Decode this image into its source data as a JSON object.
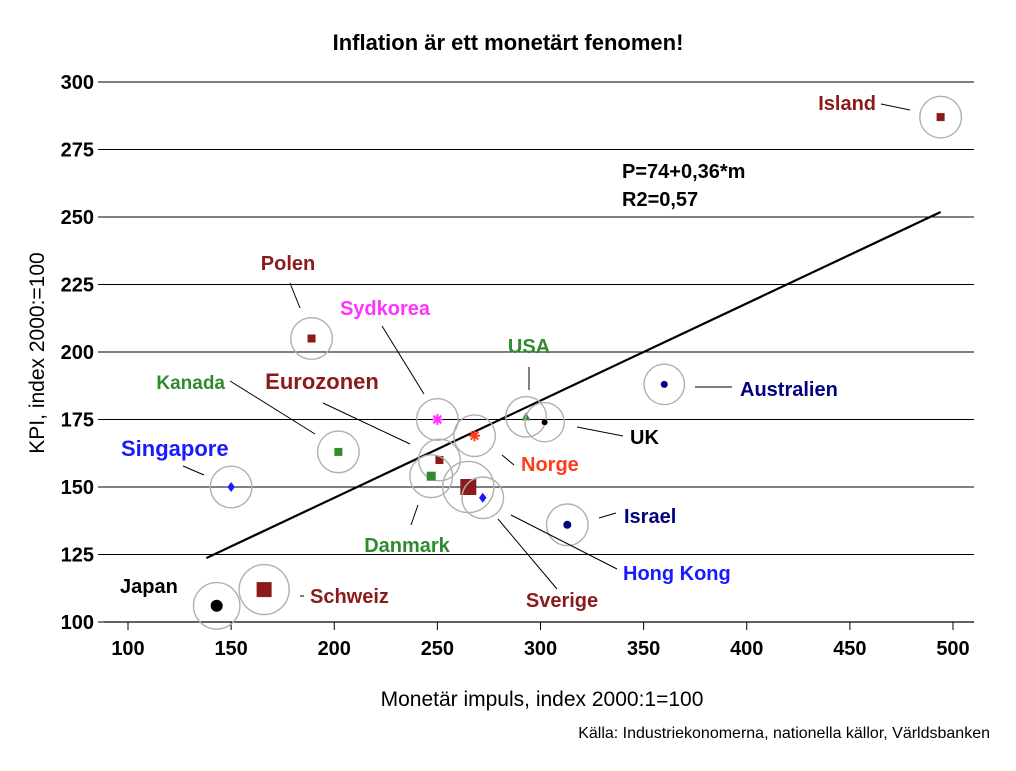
{
  "chart_data": {
    "type": "scatter",
    "title": "Inflation är ett monetärt fenomen!",
    "xlabel": "Monetär impuls, index 2000:1=100",
    "ylabel": "KPI, index 2000:=100",
    "source": "Källa: Industriekonomerna, nationella källor, Världsbanken",
    "xlim": [
      90,
      510
    ],
    "ylim": [
      100,
      300
    ],
    "xticks": [
      100,
      150,
      200,
      250,
      300,
      350,
      400,
      450,
      500
    ],
    "yticks": [
      100,
      125,
      150,
      175,
      200,
      225,
      250,
      275,
      300
    ],
    "grid": "horizontal",
    "regression": {
      "line1": "P=74+0,36*m",
      "line2": "R2=0,57",
      "x_range": [
        138,
        494
      ]
    },
    "points": [
      {
        "name": "Island",
        "x": 494,
        "y": 287,
        "color": "#8B1A1A",
        "marker": "square",
        "size": 8
      },
      {
        "name": "Polen",
        "x": 189,
        "y": 205,
        "color": "#8B1A1A",
        "marker": "square",
        "size": 8
      },
      {
        "name": "Sydkorea",
        "x": 250,
        "y": 175,
        "color": "#FF33FF",
        "marker": "star",
        "size": 8
      },
      {
        "name": "USA",
        "x": 293,
        "y": 176,
        "color": "#2E8B2E",
        "marker": "triangle",
        "size": 7
      },
      {
        "name": "Australien",
        "x": 360,
        "y": 188,
        "color": "#000080",
        "marker": "circle",
        "size": 7
      },
      {
        "name": "Kanada",
        "x": 202,
        "y": 163,
        "color": "#2E8B2E",
        "marker": "square",
        "size": 8
      },
      {
        "name": "Eurozonen",
        "x": 251,
        "y": 160,
        "color": "#8B1A1A",
        "marker": "square",
        "size": 8
      },
      {
        "name": "UK",
        "x": 302,
        "y": 174,
        "color": "#000000",
        "marker": "circle",
        "size": 6
      },
      {
        "name": "Norge",
        "x": 268,
        "y": 169,
        "color": "#FF3B1A",
        "marker": "star",
        "size": 8
      },
      {
        "name": "Singapore",
        "x": 150,
        "y": 150,
        "color": "#1A1AFF",
        "marker": "diamond",
        "size": 8
      },
      {
        "name": "Danmark",
        "x": 247,
        "y": 154,
        "color": "#2E8B2E",
        "marker": "square",
        "size": 9
      },
      {
        "name": "Sverige",
        "x": 265,
        "y": 150,
        "color": "#8B1A1A",
        "marker": "square",
        "size": 16
      },
      {
        "name": "Hong Kong",
        "x": 272,
        "y": 146,
        "color": "#1A1AFF",
        "marker": "diamond",
        "size": 8
      },
      {
        "name": "Israel",
        "x": 313,
        "y": 136,
        "color": "#000080",
        "marker": "circle",
        "size": 8
      },
      {
        "name": "Japan",
        "x": 143,
        "y": 106,
        "color": "#000000",
        "marker": "circle",
        "size": 12
      },
      {
        "name": "Schweiz",
        "x": 166,
        "y": 112,
        "color": "#8B1A1A",
        "marker": "square",
        "size": 15
      }
    ]
  },
  "labels": {
    "Island": {
      "text": "Island",
      "color": "#8B1A1A"
    },
    "Polen": {
      "text": "Polen",
      "color": "#8B1A1A"
    },
    "Sydkorea": {
      "text": "Sydkorea",
      "color": "#FF33FF"
    },
    "USA": {
      "text": "USA",
      "color": "#2E8B2E"
    },
    "Australien": {
      "text": "Australien",
      "color": "#000080"
    },
    "Kanada": {
      "text": "Kanada",
      "color": "#2E8B2E"
    },
    "Eurozonen": {
      "text": "Eurozonen",
      "color": "#8B1A1A"
    },
    "UK": {
      "text": "UK",
      "color": "#000000"
    },
    "Norge": {
      "text": "Norge",
      "color": "#FF3B1A"
    },
    "Singapore": {
      "text": "Singapore",
      "color": "#1A1AFF"
    },
    "Danmark": {
      "text": "Danmark",
      "color": "#2E8B2E"
    },
    "Sverige": {
      "text": "Sverige",
      "color": "#8B1A1A"
    },
    "Hong Kong": {
      "text": "Hong Kong",
      "color": "#1A1AFF"
    },
    "Israel": {
      "text": "Israel",
      "color": "#000080"
    },
    "Japan": {
      "text": "Japan",
      "color": "#000000"
    },
    "Schweiz": {
      "text": "Schweiz",
      "color": "#8B1A1A"
    }
  }
}
